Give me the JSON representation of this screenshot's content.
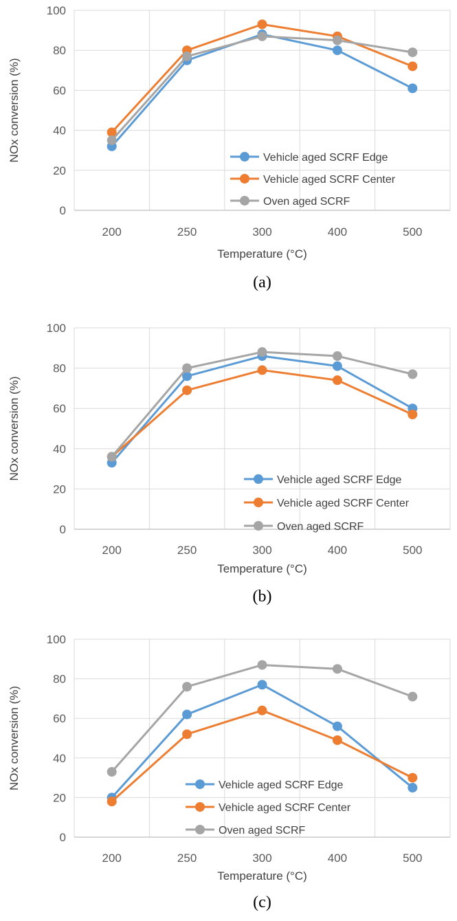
{
  "colors": {
    "edge": "#5b9bd5",
    "center": "#ed7d31",
    "oven": "#a5a5a5",
    "grid": "#d9d9d9",
    "axis": "#bfbfbf"
  },
  "chart_data": [
    {
      "type": "line",
      "caption": "(a)",
      "categories": [
        "200",
        "250",
        "300",
        "400",
        "500"
      ],
      "series": [
        {
          "name": "Vehicle aged SCRF Edge",
          "color": "#5b9bd5",
          "values": [
            32,
            75,
            88,
            80,
            61
          ]
        },
        {
          "name": "Vehicle aged SCRF Center",
          "color": "#ed7d31",
          "values": [
            39,
            80,
            93,
            87,
            72
          ]
        },
        {
          "name": "Oven aged SCRF",
          "color": "#a5a5a5",
          "values": [
            35,
            77,
            87,
            85,
            79
          ]
        }
      ],
      "xlabel": "Temperature (°C)",
      "ylabel": "NOx conversion (%)",
      "ylim": [
        0,
        100
      ],
      "yticks": [
        "0",
        "20",
        "40",
        "60",
        "80",
        "100"
      ],
      "grid": true,
      "legend_position": "bottom-right"
    },
    {
      "type": "line",
      "caption": "(b)",
      "categories": [
        "200",
        "250",
        "300",
        "400",
        "500"
      ],
      "series": [
        {
          "name": "Vehicle aged SCRF Edge",
          "color": "#5b9bd5",
          "values": [
            33,
            76,
            86,
            81,
            60
          ]
        },
        {
          "name": "Vehicle aged SCRF Center",
          "color": "#ed7d31",
          "values": [
            36,
            69,
            79,
            74,
            57
          ]
        },
        {
          "name": "Oven aged SCRF",
          "color": "#a5a5a5",
          "values": [
            36,
            80,
            88,
            86,
            77
          ]
        }
      ],
      "xlabel": "Temperature (°C)",
      "ylabel": "NOx conversion (%)",
      "ylim": [
        0,
        100
      ],
      "yticks": [
        "0",
        "20",
        "40",
        "60",
        "80",
        "100"
      ],
      "grid": true,
      "legend_position": "bottom-right"
    },
    {
      "type": "line",
      "caption": "(c)",
      "categories": [
        "200",
        "250",
        "300",
        "400",
        "500"
      ],
      "series": [
        {
          "name": "Vehicle aged SCRF Edge",
          "color": "#5b9bd5",
          "values": [
            20,
            62,
            77,
            56,
            25
          ]
        },
        {
          "name": "Vehicle aged SCRF Center",
          "color": "#ed7d31",
          "values": [
            18,
            52,
            64,
            49,
            30
          ]
        },
        {
          "name": "Oven aged SCRF",
          "color": "#a5a5a5",
          "values": [
            33,
            76,
            87,
            85,
            71
          ]
        }
      ],
      "xlabel": "Temperature (°C)",
      "ylabel": "NOx conversion (%)",
      "ylim": [
        0,
        100
      ],
      "yticks": [
        "0",
        "20",
        "40",
        "60",
        "80",
        "100"
      ],
      "grid": true,
      "legend_position": "bottom-center"
    }
  ]
}
